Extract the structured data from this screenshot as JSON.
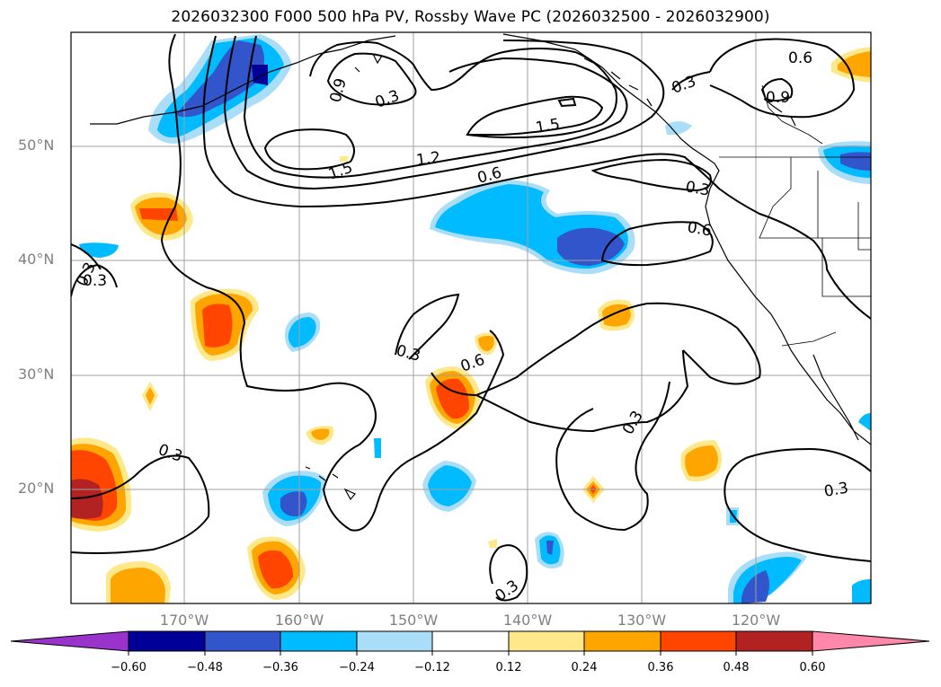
{
  "title": "2026032300 F000 500 hPa PV, Rossby Wave PC (2026032500 - 2026032900)",
  "lat_labels": [
    "50°N",
    "40°N",
    "30°N",
    "20°N"
  ],
  "lon_labels": [
    "170°W",
    "160°W",
    "150°W",
    "140°W",
    "130°W",
    "120°W"
  ],
  "colorbar": {
    "ticks": [
      "−0.60",
      "−0.48",
      "−0.36",
      "−0.24",
      "−0.12",
      "0.12",
      "0.24",
      "0.36",
      "0.48",
      "0.60"
    ],
    "colors": [
      "#9933cc",
      "#000099",
      "#3355cc",
      "#00bbff",
      "#aaddf8",
      "#ffffff",
      "#ffe88a",
      "#ffa500",
      "#ff4500",
      "#b22222",
      "#ff88aa"
    ]
  },
  "contour_labels": [
    {
      "id": "c1",
      "text": "0.3"
    },
    {
      "id": "c2",
      "text": "0.9"
    },
    {
      "id": "c3",
      "text": "1.5"
    },
    {
      "id": "c4",
      "text": "1.2"
    },
    {
      "id": "c5",
      "text": "0.6"
    },
    {
      "id": "c6",
      "text": "1.5"
    },
    {
      "id": "c7",
      "text": "0.3"
    },
    {
      "id": "c8",
      "text": "0.6"
    },
    {
      "id": "c9",
      "text": "0.9"
    },
    {
      "id": "c10",
      "text": "0.3"
    },
    {
      "id": "c11",
      "text": "0.3"
    },
    {
      "id": "c12",
      "text": "0.6"
    },
    {
      "id": "c13",
      "text": "0.3"
    },
    {
      "id": "c14",
      "text": "0.6"
    },
    {
      "id": "c15",
      "text": "0.3"
    },
    {
      "id": "c16",
      "text": "0.3"
    },
    {
      "id": "c17",
      "text": "0.3"
    },
    {
      "id": "c18",
      "text": "0.3"
    },
    {
      "id": "c19",
      "text": "0.3"
    }
  ]
}
